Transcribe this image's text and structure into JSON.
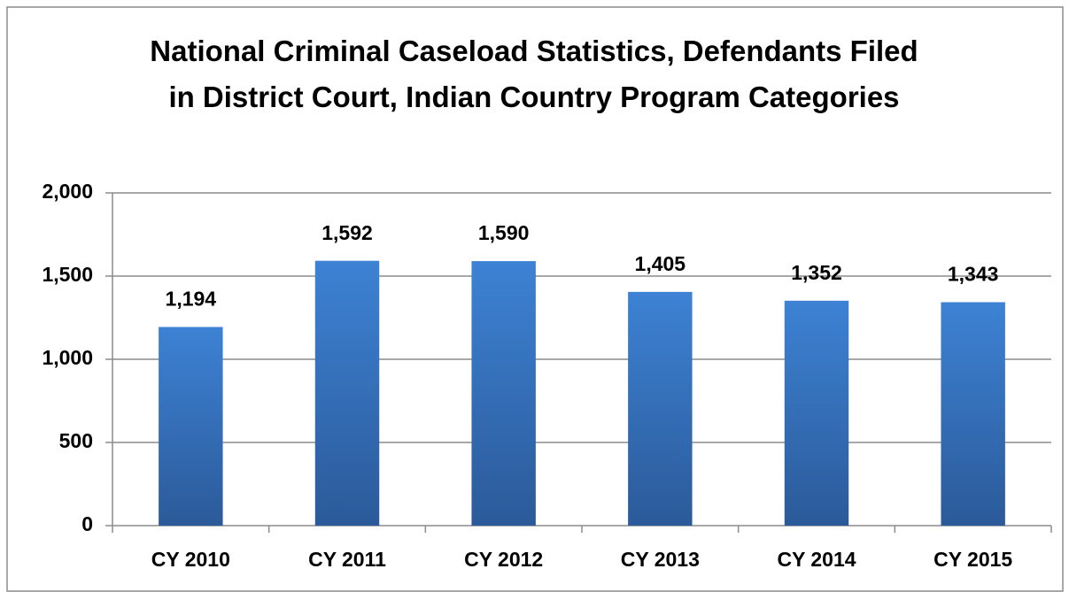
{
  "chart_data": {
    "type": "bar",
    "title": "National Criminal Caseload Statistics, Defendants Filed in District Court, Indian Country Program Categories",
    "categories": [
      "CY 2010",
      "CY 2011",
      "CY 2012",
      "CY 2013",
      "CY 2014",
      "CY 2015"
    ],
    "values": [
      1194,
      1592,
      1590,
      1405,
      1352,
      1343
    ],
    "value_labels": [
      "1,194",
      "1,592",
      "1,590",
      "1,405",
      "1,352",
      "1,343"
    ],
    "color": "#3a7acb",
    "ylim": [
      0,
      2000
    ],
    "yticks": [
      0,
      500,
      {
        "value": 1000,
        "label": "1,000"
      },
      {
        "value": 1500,
        "label": "1,500"
      },
      {
        "value": 2000,
        "label": "2,000"
      }
    ],
    "grid": true
  }
}
